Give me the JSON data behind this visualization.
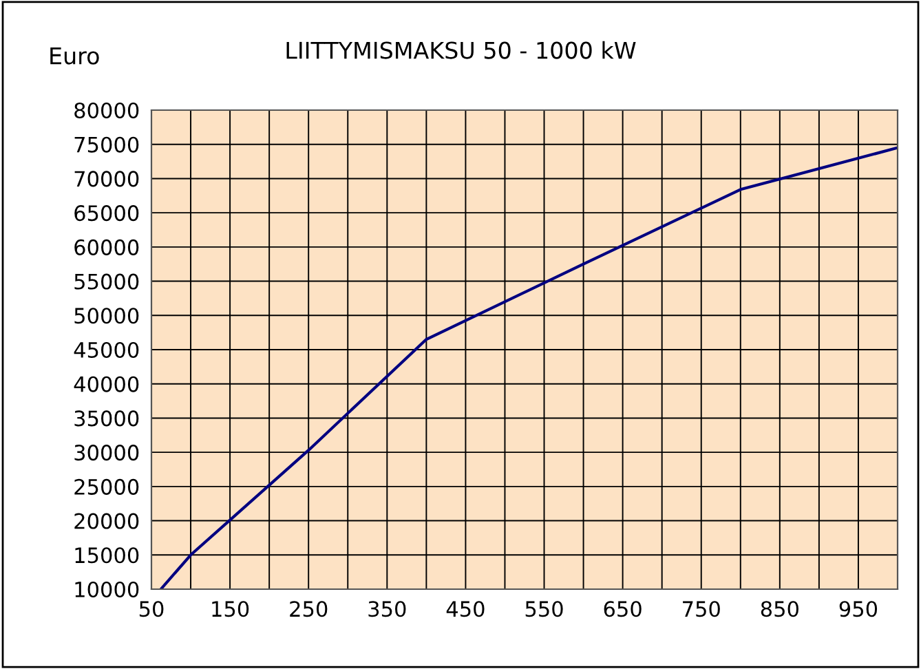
{
  "chart_data": {
    "type": "line",
    "title": "LIITTYMISMAKSU 50 - 1000 kW",
    "ylabel": "Euro",
    "x": [
      62,
      100,
      250,
      400,
      600,
      800,
      1000
    ],
    "series": [
      {
        "color": "#000080",
        "values": [
          10000,
          15000,
          30300,
          46500,
          57500,
          68400,
          74500
        ]
      }
    ],
    "xlim": [
      50,
      1000
    ],
    "xticks": [
      50,
      {
        "value": 100,
        "label": null
      },
      150,
      {
        "value": 200,
        "label": null
      },
      250,
      {
        "value": 300,
        "label": null
      },
      350,
      {
        "value": 400,
        "label": null
      },
      450,
      {
        "value": 500,
        "label": null
      },
      550,
      {
        "value": 600,
        "label": null
      },
      650,
      {
        "value": 700,
        "label": null
      },
      750,
      {
        "value": 800,
        "label": null
      },
      850,
      {
        "value": 900,
        "label": null
      },
      950,
      {
        "value": 1000,
        "label": null
      }
    ],
    "ylim": [
      10000,
      80000
    ],
    "yticks": [
      10000,
      15000,
      20000,
      25000,
      30000,
      35000,
      40000,
      45000,
      50000,
      55000,
      60000,
      65000,
      70000,
      75000,
      80000
    ],
    "grid": true,
    "marker": "none",
    "line_style": "solid",
    "legend": false
  }
}
